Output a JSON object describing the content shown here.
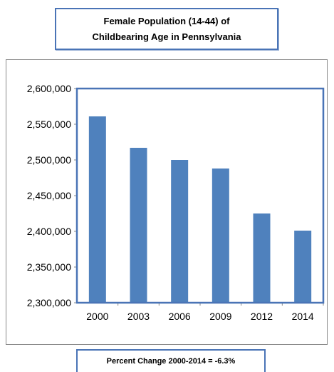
{
  "chart_data": {
    "type": "bar",
    "title": "Female Population (14-44) of Childbearing Age in Pennsylvania",
    "xlabel": "",
    "ylabel": "",
    "categories": [
      "2000",
      "2003",
      "2006",
      "2009",
      "2012",
      "2014"
    ],
    "series": [
      {
        "values": [
          2561000,
          2517000,
          2500000,
          2488000,
          2425000,
          2401000
        ]
      }
    ],
    "ylim": [
      2300000,
      2600000
    ],
    "yticks": [
      "2,300,000",
      "2,350,000",
      "2,400,000",
      "2,450,000",
      "2,500,000",
      "2,550,000",
      "2,600,000"
    ],
    "ytick_values": [
      2300000,
      2350000,
      2400000,
      2450000,
      2500000,
      2550000,
      2600000
    ],
    "grid": false,
    "legend": "none",
    "colors": {
      "bar": "#4f81bd",
      "plot_border": "#4a74b6"
    }
  },
  "footnote": "Percent Change 2000-2014 =  -6.3%"
}
